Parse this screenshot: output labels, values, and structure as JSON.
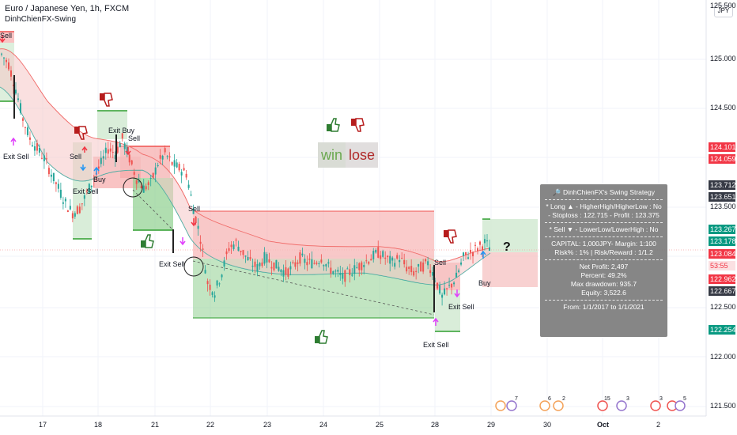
{
  "header": {
    "symbol": "Euro / Japanese Yen, 1h, FXCM",
    "indicator": "DinhChienFX-Swing"
  },
  "currency_button": "JPY",
  "price_axis": {
    "ticks": [
      "125.000",
      "124.500",
      "124.000",
      "123.500",
      "123.000",
      "122.500",
      "122.000",
      "121.500"
    ],
    "top_partial": "125.500"
  },
  "price_badges": [
    {
      "label": "124.101",
      "color": "#f23645",
      "text_color": "#ffffff"
    },
    {
      "label": "124.059",
      "color": "#f23645",
      "text_color": "#ffffff"
    },
    {
      "label": "123.712",
      "color": "#363a45",
      "text_color": "#ffffff"
    },
    {
      "label": "123.651",
      "color": "#363a45",
      "text_color": "#ffffff"
    },
    {
      "label": "123.267",
      "color": "#089981",
      "text_color": "#ffffff"
    },
    {
      "label": "123.178",
      "color": "#089981",
      "text_color": "#ffffff"
    },
    {
      "label": "123.084",
      "color": "#f23645",
      "text_color": "#ffffff"
    },
    {
      "label": "53:55",
      "color": "#fbe0e2",
      "text_color": "#f23645"
    },
    {
      "label": "122.962",
      "color": "#f23645",
      "text_color": "#ffffff"
    },
    {
      "label": "122.667",
      "color": "#363a45",
      "text_color": "#ffffff"
    },
    {
      "label": "122.254",
      "color": "#089981",
      "text_color": "#ffffff"
    }
  ],
  "time_axis": [
    "17",
    "18",
    "21",
    "22",
    "23",
    "24",
    "25",
    "28",
    "29",
    "30",
    "Oct",
    "2"
  ],
  "annotations": {
    "win": "win",
    "lose": "lose",
    "question": "?",
    "labels": [
      "Sell",
      "Exit Sell",
      "Sell",
      "Exit Buy",
      "Sell",
      "Buy",
      "Exit Sell",
      "Sell",
      "Exit Sell",
      "Sell",
      "Exit Sell",
      "Buy",
      "Exit Sell"
    ]
  },
  "strategy_panel": {
    "title": "DinhChienFX's Swing Strategy",
    "long_line": "* Long ▲ - HigherHigh/HigherLow : No",
    "long_sub": "- Stoploss : 122.715 - Profit : 123.375",
    "sell_line": "* Sell ▼ - LowerLow/LowerHigh : No",
    "capital": "CAPITAL: 1,000JPY- Margin: 1:100",
    "risk": "Risk% : 1% | Risk/Reward : 1/1.2",
    "net_profit": "Net Profit: 2,497",
    "percent": "Percent: 49.2%",
    "drawdown": "Max drawdown: 935.7",
    "equity": "Equity: 3,522.6",
    "period": "From: 1/1/2017 to 1/1/2021"
  },
  "events_row": {
    "counts": [
      "7",
      "6",
      "2",
      "15",
      "3",
      "3",
      "5"
    ]
  },
  "chart_data": {
    "type": "candlestick",
    "title": "Euro / Japanese Yen, 1h, FXCM",
    "ylim": [
      121.5,
      125.5
    ],
    "x_ticks": [
      "17",
      "18",
      "21",
      "22",
      "23",
      "24",
      "25",
      "28",
      "29",
      "30",
      "Oct",
      "2"
    ],
    "price_path": [
      125.05,
      124.95,
      124.7,
      124.4,
      124.2,
      124.1,
      124.0,
      123.85,
      123.7,
      123.55,
      123.45,
      123.5,
      123.65,
      123.8,
      123.95,
      124.1,
      124.05,
      124.2,
      124.0,
      123.8,
      123.7,
      123.75,
      123.95,
      124.05,
      123.95,
      123.9,
      123.85,
      123.5,
      123.2,
      122.75,
      122.65,
      122.85,
      123.1,
      123.15,
      123.05,
      122.95,
      122.9,
      123.0,
      122.95,
      122.9,
      122.85,
      122.9,
      123.0,
      122.95,
      122.95,
      123.0,
      122.9,
      122.85,
      122.8,
      122.85,
      122.9,
      122.95,
      123.0,
      123.05,
      123.0,
      122.95,
      123.0,
      122.9,
      122.85,
      122.9,
      122.95,
      122.8,
      122.6,
      122.7,
      122.8,
      123.0,
      123.05,
      123.1,
      123.15,
      123.08
    ]
  },
  "colors": {
    "bull": "#26a69a",
    "bear": "#ef5350",
    "band_fill": "#f6c6c6",
    "band_green": "#cfe8cf",
    "zone_green": "#8fd08f",
    "zone_red": "#f6a9a9",
    "panel_bg": "#757575"
  }
}
